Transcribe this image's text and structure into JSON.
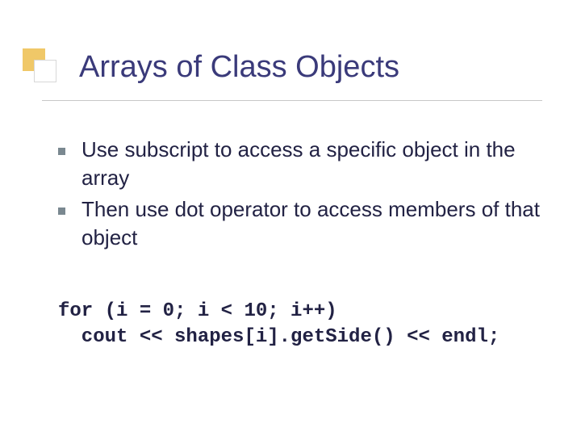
{
  "title": "Arrays of Class Objects",
  "bullets": [
    "Use subscript to access a specific object in the array",
    "Then use dot operator to access members of that object"
  ],
  "code": {
    "line1": "for (i = 0; i < 10; i++)",
    "line2": "  cout << shapes[i].getSide() << endl;"
  },
  "colors": {
    "title_color": "#3a3a7a",
    "text_color": "#222244",
    "bullet_color": "#7a8890",
    "yellow": "#f0c868",
    "line_color": "#c8c8c8"
  }
}
